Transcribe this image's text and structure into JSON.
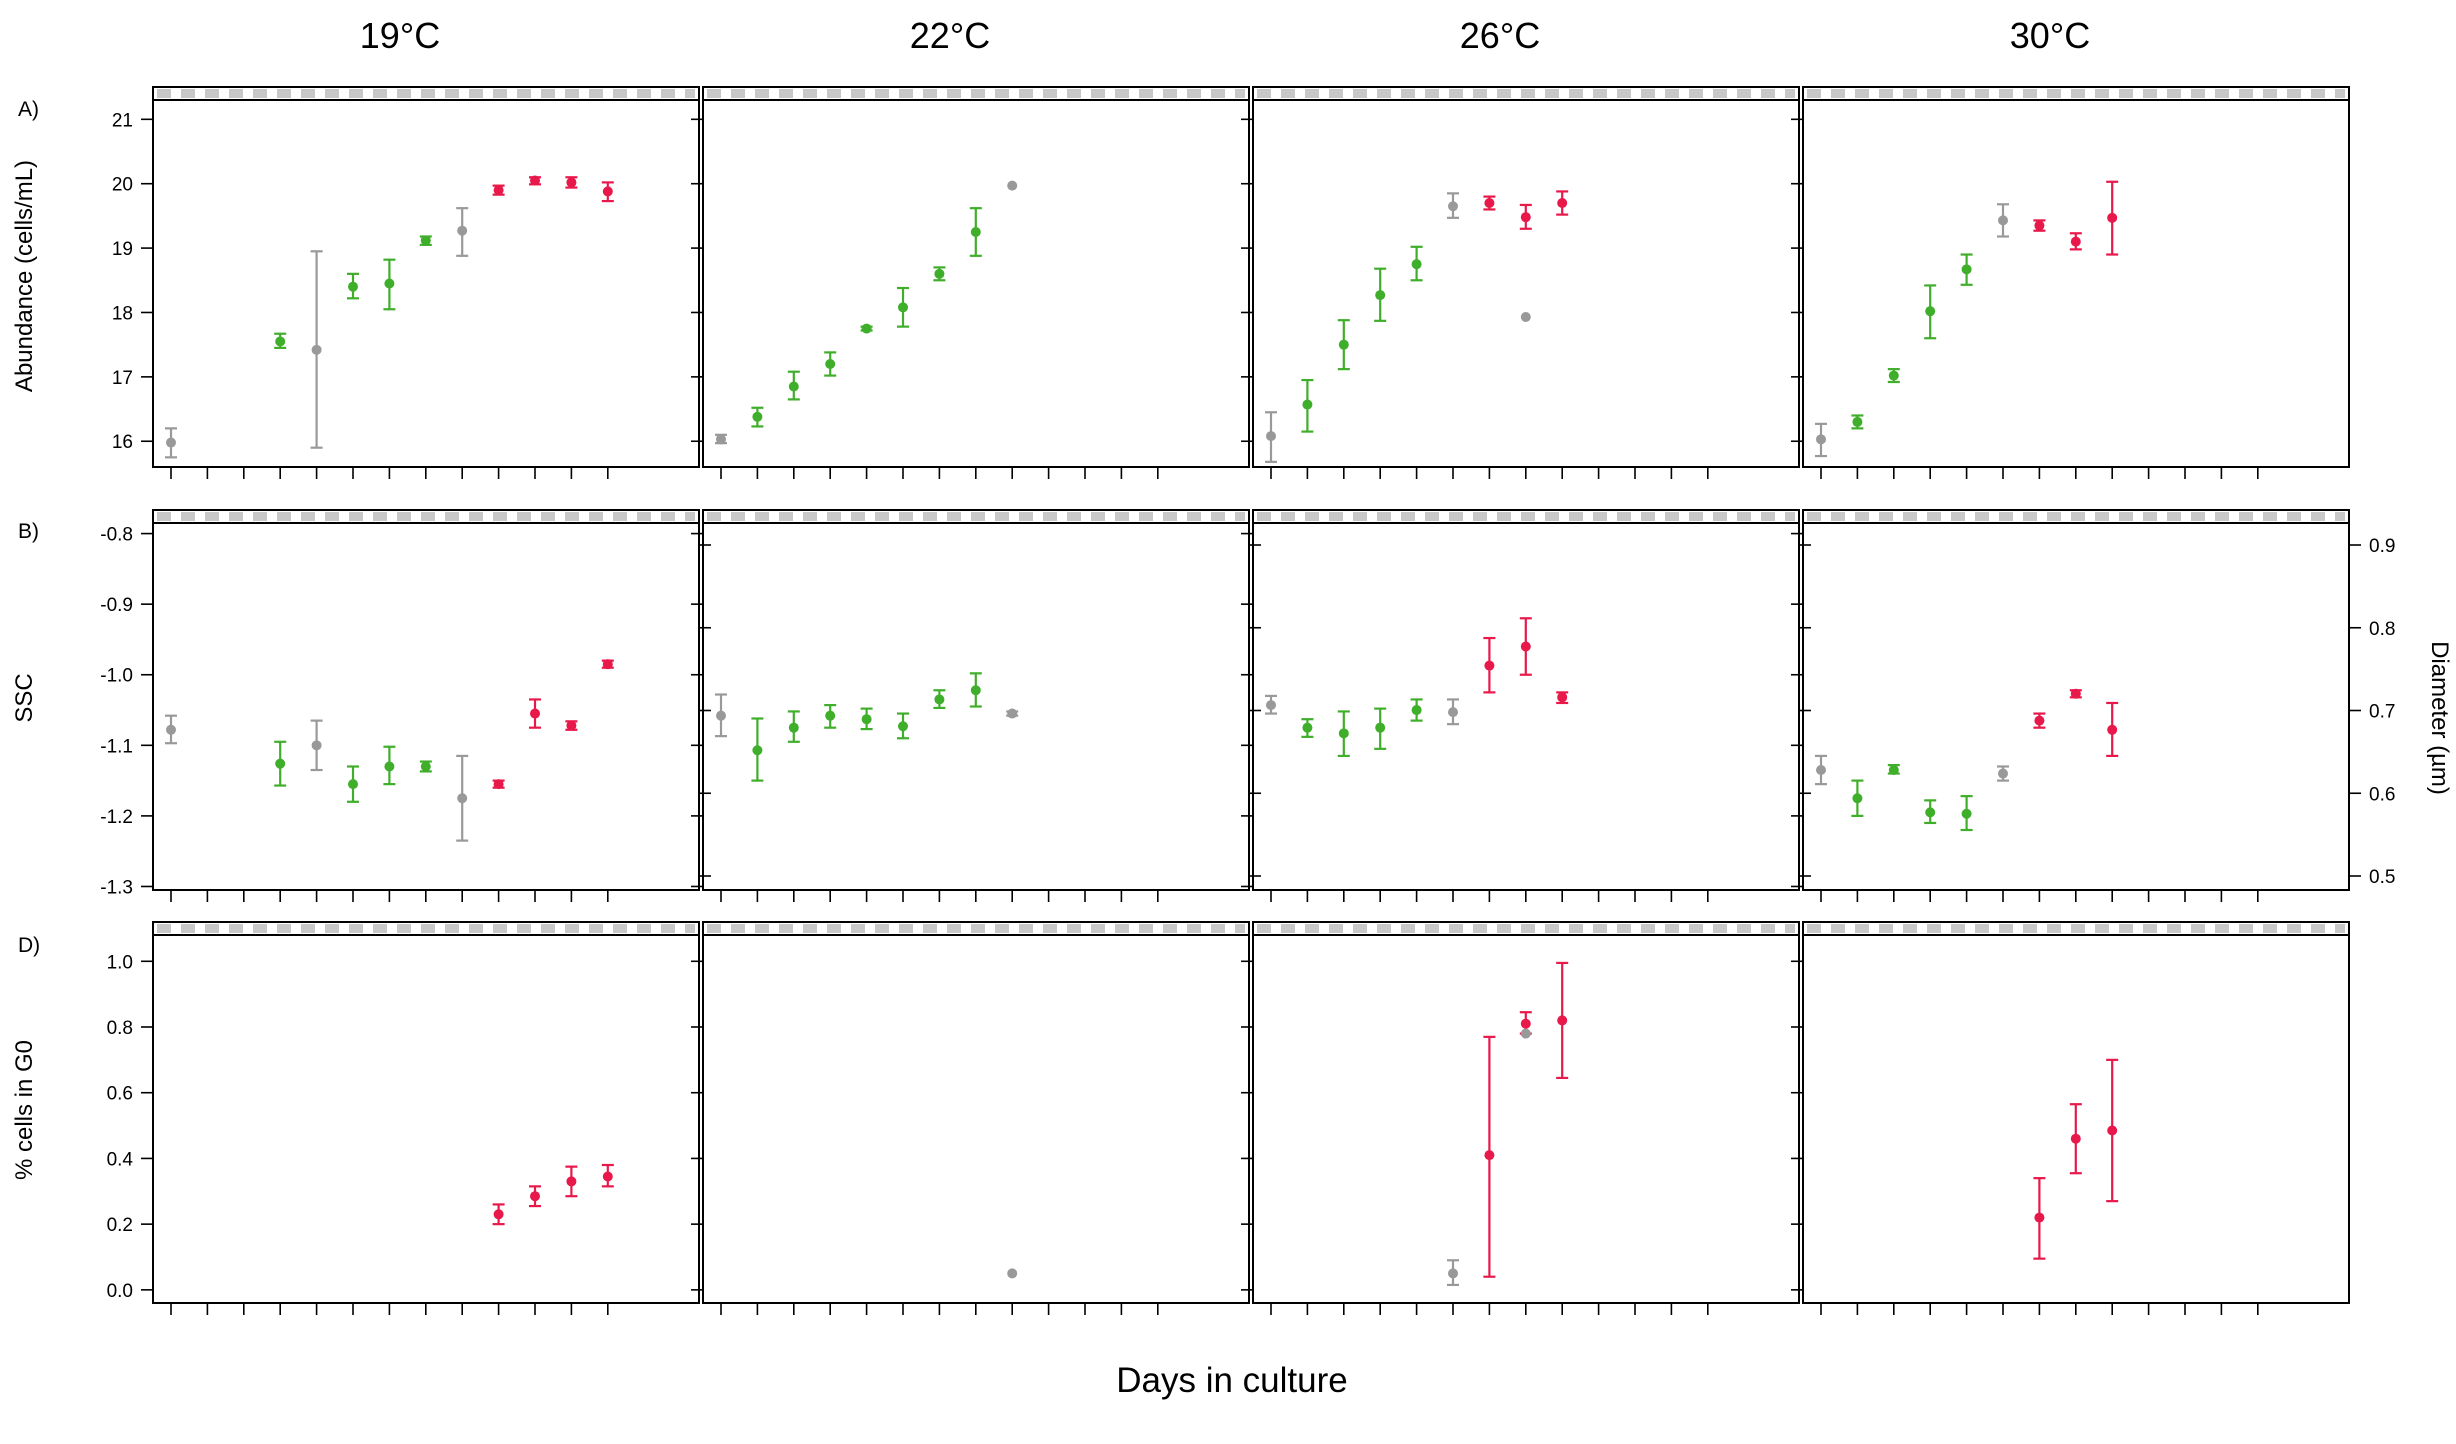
{
  "figure": {
    "columns": [
      "19°C",
      "22°C",
      "26°C",
      "30°C"
    ],
    "panel_letters": [
      "A)",
      "B)",
      "D)"
    ],
    "ylabels": [
      "Abundance (cells/mL)",
      "SSC",
      "% cells in G0"
    ],
    "ylabel_right": "Diameter (µm)",
    "xlabel": "Days in culture",
    "colors": {
      "early": "#999999",
      "growth": "#3fae2a",
      "stationary": "#e8184a"
    }
  },
  "chart_data": [
    {
      "type": "scatter",
      "row": "A)",
      "ylabel": "Abundance (cells/mL)",
      "ylim": [
        15.6,
        21.3
      ],
      "yticks": [
        16,
        17,
        18,
        19,
        20,
        21
      ],
      "ytick_labels": [
        "16",
        "17",
        "18",
        "19",
        "20",
        "21"
      ],
      "x_tick_count": 13,
      "grid": false,
      "panels": [
        {
          "column": "19°C",
          "points": [
            {
              "x": 0,
              "y": 15.98,
              "lo": 15.75,
              "hi": 16.2,
              "phase": "early"
            },
            {
              "x": 3,
              "y": 17.55,
              "lo": 17.45,
              "hi": 17.67,
              "phase": "growth"
            },
            {
              "x": 4,
              "y": 17.42,
              "lo": 15.9,
              "hi": 18.95,
              "phase": "early"
            },
            {
              "x": 5,
              "y": 18.4,
              "lo": 18.22,
              "hi": 18.6,
              "phase": "growth"
            },
            {
              "x": 6,
              "y": 18.45,
              "lo": 18.05,
              "hi": 18.82,
              "phase": "growth"
            },
            {
              "x": 7,
              "y": 19.12,
              "lo": 19.05,
              "hi": 19.18,
              "phase": "growth"
            },
            {
              "x": 8,
              "y": 19.27,
              "lo": 18.88,
              "hi": 19.62,
              "phase": "early"
            },
            {
              "x": 9,
              "y": 19.9,
              "lo": 19.83,
              "hi": 19.97,
              "phase": "stationary"
            },
            {
              "x": 10,
              "y": 20.05,
              "lo": 19.99,
              "hi": 20.1,
              "phase": "stationary"
            },
            {
              "x": 11,
              "y": 20.02,
              "lo": 19.94,
              "hi": 20.1,
              "phase": "stationary"
            },
            {
              "x": 12,
              "y": 19.88,
              "lo": 19.73,
              "hi": 20.02,
              "phase": "stationary"
            }
          ]
        },
        {
          "column": "22°C",
          "points": [
            {
              "x": 0,
              "y": 16.03,
              "lo": 15.97,
              "hi": 16.1,
              "phase": "early"
            },
            {
              "x": 1,
              "y": 16.38,
              "lo": 16.23,
              "hi": 16.52,
              "phase": "growth"
            },
            {
              "x": 2,
              "y": 16.85,
              "lo": 16.65,
              "hi": 17.08,
              "phase": "growth"
            },
            {
              "x": 3,
              "y": 17.2,
              "lo": 17.02,
              "hi": 17.38,
              "phase": "growth"
            },
            {
              "x": 4,
              "y": 17.75,
              "lo": 17.72,
              "hi": 17.78,
              "phase": "growth"
            },
            {
              "x": 5,
              "y": 18.08,
              "lo": 17.78,
              "hi": 18.38,
              "phase": "growth"
            },
            {
              "x": 6,
              "y": 18.6,
              "lo": 18.5,
              "hi": 18.7,
              "phase": "growth"
            },
            {
              "x": 7,
              "y": 19.25,
              "lo": 18.88,
              "hi": 19.62,
              "phase": "growth"
            },
            {
              "x": 8,
              "y": 19.97,
              "lo": 19.97,
              "hi": 19.97,
              "phase": "early"
            }
          ]
        },
        {
          "column": "26°C",
          "points": [
            {
              "x": 0,
              "y": 16.08,
              "lo": 15.68,
              "hi": 16.45,
              "phase": "early"
            },
            {
              "x": 1,
              "y": 16.57,
              "lo": 16.15,
              "hi": 16.95,
              "phase": "growth"
            },
            {
              "x": 2,
              "y": 17.5,
              "lo": 17.12,
              "hi": 17.88,
              "phase": "growth"
            },
            {
              "x": 3,
              "y": 18.27,
              "lo": 17.87,
              "hi": 18.68,
              "phase": "growth"
            },
            {
              "x": 4,
              "y": 18.75,
              "lo": 18.5,
              "hi": 19.02,
              "phase": "growth"
            },
            {
              "x": 5,
              "y": 19.65,
              "lo": 19.47,
              "hi": 19.85,
              "phase": "early"
            },
            {
              "x": 6,
              "y": 19.7,
              "lo": 19.6,
              "hi": 19.8,
              "phase": "stationary"
            },
            {
              "x": 7,
              "y": 19.48,
              "lo": 19.3,
              "hi": 19.67,
              "phase": "stationary"
            },
            {
              "x": 7,
              "y": 17.93,
              "lo": 17.93,
              "hi": 17.93,
              "phase": "early"
            },
            {
              "x": 8,
              "y": 19.7,
              "lo": 19.52,
              "hi": 19.88,
              "phase": "stationary"
            }
          ]
        },
        {
          "column": "30°C",
          "points": [
            {
              "x": 0,
              "y": 16.03,
              "lo": 15.77,
              "hi": 16.27,
              "phase": "early"
            },
            {
              "x": 1,
              "y": 16.3,
              "lo": 16.2,
              "hi": 16.4,
              "phase": "growth"
            },
            {
              "x": 2,
              "y": 17.02,
              "lo": 16.92,
              "hi": 17.12,
              "phase": "growth"
            },
            {
              "x": 3,
              "y": 18.02,
              "lo": 17.6,
              "hi": 18.42,
              "phase": "growth"
            },
            {
              "x": 4,
              "y": 18.67,
              "lo": 18.43,
              "hi": 18.9,
              "phase": "growth"
            },
            {
              "x": 5,
              "y": 19.43,
              "lo": 19.18,
              "hi": 19.68,
              "phase": "early"
            },
            {
              "x": 6,
              "y": 19.35,
              "lo": 19.27,
              "hi": 19.43,
              "phase": "stationary"
            },
            {
              "x": 7,
              "y": 19.1,
              "lo": 18.98,
              "hi": 19.23,
              "phase": "stationary"
            },
            {
              "x": 8,
              "y": 19.47,
              "lo": 18.9,
              "hi": 20.03,
              "phase": "stationary"
            }
          ]
        }
      ]
    },
    {
      "type": "scatter",
      "row": "B)",
      "ylabel": "SSC",
      "ylabel_right": "Diameter (µm)",
      "ylim": [
        -1.305,
        -0.785
      ],
      "yticks": [
        -0.8,
        -0.9,
        -1.0,
        -1.1,
        -1.2,
        -1.3
      ],
      "ytick_labels": [
        "-0.8",
        "-0.9",
        "-1.0",
        "-1.1",
        "-1.2",
        "-1.3"
      ],
      "right_ticks": [
        0.5,
        0.6,
        0.7,
        0.8,
        0.9
      ],
      "right_tick_labels": [
        "0.5",
        "0.6",
        "0.7",
        "0.8",
        "0.9"
      ],
      "x_tick_count": 13,
      "grid": false,
      "panels": [
        {
          "column": "19°C",
          "points": [
            {
              "x": 0,
              "y": -1.078,
              "lo": -1.097,
              "hi": -1.058,
              "phase": "early"
            },
            {
              "x": 3,
              "y": -1.126,
              "lo": -1.157,
              "hi": -1.095,
              "phase": "growth"
            },
            {
              "x": 4,
              "y": -1.1,
              "lo": -1.135,
              "hi": -1.065,
              "phase": "early"
            },
            {
              "x": 5,
              "y": -1.155,
              "lo": -1.18,
              "hi": -1.13,
              "phase": "growth"
            },
            {
              "x": 6,
              "y": -1.13,
              "lo": -1.155,
              "hi": -1.102,
              "phase": "growth"
            },
            {
              "x": 7,
              "y": -1.13,
              "lo": -1.137,
              "hi": -1.123,
              "phase": "growth"
            },
            {
              "x": 8,
              "y": -1.175,
              "lo": -1.235,
              "hi": -1.115,
              "phase": "early"
            },
            {
              "x": 9,
              "y": -1.155,
              "lo": -1.16,
              "hi": -1.15,
              "phase": "stationary"
            },
            {
              "x": 10,
              "y": -1.055,
              "lo": -1.075,
              "hi": -1.035,
              "phase": "stationary"
            },
            {
              "x": 11,
              "y": -1.072,
              "lo": -1.078,
              "hi": -1.066,
              "phase": "stationary"
            },
            {
              "x": 12,
              "y": -0.985,
              "lo": -0.99,
              "hi": -0.98,
              "phase": "stationary"
            }
          ]
        },
        {
          "column": "22°C",
          "points": [
            {
              "x": 0,
              "y": -1.058,
              "lo": -1.087,
              "hi": -1.028,
              "phase": "early"
            },
            {
              "x": 1,
              "y": -1.107,
              "lo": -1.15,
              "hi": -1.062,
              "phase": "growth"
            },
            {
              "x": 2,
              "y": -1.075,
              "lo": -1.095,
              "hi": -1.052,
              "phase": "growth"
            },
            {
              "x": 3,
              "y": -1.058,
              "lo": -1.075,
              "hi": -1.043,
              "phase": "growth"
            },
            {
              "x": 4,
              "y": -1.063,
              "lo": -1.077,
              "hi": -1.048,
              "phase": "growth"
            },
            {
              "x": 5,
              "y": -1.073,
              "lo": -1.09,
              "hi": -1.055,
              "phase": "growth"
            },
            {
              "x": 6,
              "y": -1.035,
              "lo": -1.047,
              "hi": -1.022,
              "phase": "growth"
            },
            {
              "x": 7,
              "y": -1.022,
              "lo": -1.045,
              "hi": -0.998,
              "phase": "growth"
            },
            {
              "x": 8,
              "y": -1.055,
              "lo": -1.058,
              "hi": -1.052,
              "phase": "early"
            }
          ]
        },
        {
          "column": "26°C",
          "points": [
            {
              "x": 0,
              "y": -1.043,
              "lo": -1.055,
              "hi": -1.03,
              "phase": "early"
            },
            {
              "x": 1,
              "y": -1.075,
              "lo": -1.088,
              "hi": -1.063,
              "phase": "growth"
            },
            {
              "x": 2,
              "y": -1.083,
              "lo": -1.115,
              "hi": -1.052,
              "phase": "growth"
            },
            {
              "x": 3,
              "y": -1.075,
              "lo": -1.105,
              "hi": -1.048,
              "phase": "growth"
            },
            {
              "x": 4,
              "y": -1.05,
              "lo": -1.065,
              "hi": -1.035,
              "phase": "growth"
            },
            {
              "x": 5,
              "y": -1.053,
              "lo": -1.07,
              "hi": -1.035,
              "phase": "early"
            },
            {
              "x": 6,
              "y": -0.987,
              "lo": -1.025,
              "hi": -0.948,
              "phase": "stationary"
            },
            {
              "x": 7,
              "y": -0.96,
              "lo": -1.0,
              "hi": -0.92,
              "phase": "stationary"
            },
            {
              "x": 8,
              "y": -1.032,
              "lo": -1.04,
              "hi": -1.025,
              "phase": "stationary"
            }
          ]
        },
        {
          "column": "30°C",
          "points": [
            {
              "x": 0,
              "y": -1.135,
              "lo": -1.155,
              "hi": -1.115,
              "phase": "early"
            },
            {
              "x": 1,
              "y": -1.175,
              "lo": -1.2,
              "hi": -1.15,
              "phase": "growth"
            },
            {
              "x": 2,
              "y": -1.135,
              "lo": -1.14,
              "hi": -1.128,
              "phase": "growth"
            },
            {
              "x": 3,
              "y": -1.195,
              "lo": -1.21,
              "hi": -1.178,
              "phase": "growth"
            },
            {
              "x": 4,
              "y": -1.197,
              "lo": -1.22,
              "hi": -1.172,
              "phase": "growth"
            },
            {
              "x": 5,
              "y": -1.14,
              "lo": -1.15,
              "hi": -1.13,
              "phase": "early"
            },
            {
              "x": 6,
              "y": -1.065,
              "lo": -1.075,
              "hi": -1.055,
              "phase": "stationary"
            },
            {
              "x": 7,
              "y": -1.027,
              "lo": -1.032,
              "hi": -1.022,
              "phase": "stationary"
            },
            {
              "x": 8,
              "y": -1.078,
              "lo": -1.115,
              "hi": -1.04,
              "phase": "stationary"
            }
          ]
        }
      ]
    },
    {
      "type": "scatter",
      "row": "D)",
      "ylabel": "% cells in G0",
      "ylim": [
        -0.04,
        1.08
      ],
      "yticks": [
        0.0,
        0.2,
        0.4,
        0.6,
        0.8,
        1.0
      ],
      "ytick_labels": [
        "0.0",
        "0.2",
        "0.4",
        "0.6",
        "0.8",
        "1.0"
      ],
      "x_tick_count": 13,
      "grid": false,
      "panels": [
        {
          "column": "19°C",
          "points": [
            {
              "x": 9,
              "y": 0.23,
              "lo": 0.2,
              "hi": 0.26,
              "phase": "stationary"
            },
            {
              "x": 10,
              "y": 0.285,
              "lo": 0.255,
              "hi": 0.315,
              "phase": "stationary"
            },
            {
              "x": 11,
              "y": 0.33,
              "lo": 0.285,
              "hi": 0.375,
              "phase": "stationary"
            },
            {
              "x": 12,
              "y": 0.345,
              "lo": 0.315,
              "hi": 0.38,
              "phase": "stationary"
            }
          ]
        },
        {
          "column": "22°C",
          "points": [
            {
              "x": 8,
              "y": 0.05,
              "lo": 0.05,
              "hi": 0.05,
              "phase": "early"
            }
          ]
        },
        {
          "column": "26°C",
          "points": [
            {
              "x": 5,
              "y": 0.05,
              "lo": 0.015,
              "hi": 0.09,
              "phase": "early"
            },
            {
              "x": 6,
              "y": 0.41,
              "lo": 0.04,
              "hi": 0.77,
              "phase": "stationary"
            },
            {
              "x": 7,
              "y": 0.81,
              "lo": 0.78,
              "hi": 0.845,
              "phase": "stationary"
            },
            {
              "x": 7,
              "y": 0.78,
              "lo": 0.78,
              "hi": 0.78,
              "phase": "early"
            },
            {
              "x": 8,
              "y": 0.82,
              "lo": 0.645,
              "hi": 0.995,
              "phase": "stationary"
            }
          ]
        },
        {
          "column": "30°C",
          "points": [
            {
              "x": 6,
              "y": 0.22,
              "lo": 0.095,
              "hi": 0.34,
              "phase": "stationary"
            },
            {
              "x": 7,
              "y": 0.46,
              "lo": 0.355,
              "hi": 0.565,
              "phase": "stationary"
            },
            {
              "x": 8,
              "y": 0.485,
              "lo": 0.27,
              "hi": 0.7,
              "phase": "stationary"
            }
          ]
        }
      ]
    }
  ]
}
